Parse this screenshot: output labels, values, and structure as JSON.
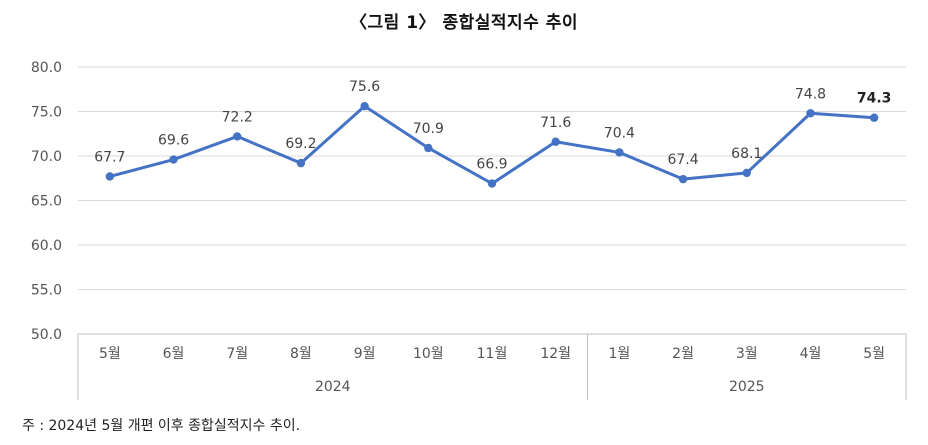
{
  "chart_data": {
    "type": "line",
    "title": "〈그림 1〉 종합실적지수 추이",
    "xlabel": "",
    "ylabel": "",
    "ylim": [
      50.0,
      80.0
    ],
    "yticks": [
      "80.0",
      "75.0",
      "70.0",
      "65.0",
      "60.0",
      "55.0",
      "50.0"
    ],
    "grid": true,
    "categories": [
      "5월",
      "6월",
      "7월",
      "8월",
      "9월",
      "10월",
      "11월",
      "12월",
      "1월",
      "2월",
      "3월",
      "4월",
      "5월"
    ],
    "groups": [
      {
        "label": "2024",
        "count": 8
      },
      {
        "label": "2025",
        "count": 5
      }
    ],
    "series": [
      {
        "values": [
          67.7,
          69.6,
          72.2,
          69.2,
          75.6,
          70.9,
          66.9,
          71.6,
          70.4,
          67.4,
          68.1,
          74.8,
          74.3
        ],
        "labels": [
          "67.7",
          "69.6",
          "72.2",
          "69.2",
          "75.6",
          "70.9",
          "66.9",
          "71.6",
          "70.4",
          "67.4",
          "68.1",
          "74.8",
          "74.3"
        ],
        "color": "#4472C4"
      }
    ]
  },
  "note": "주 : 2024년 5월 개편 이후 종합실적지수 추이."
}
